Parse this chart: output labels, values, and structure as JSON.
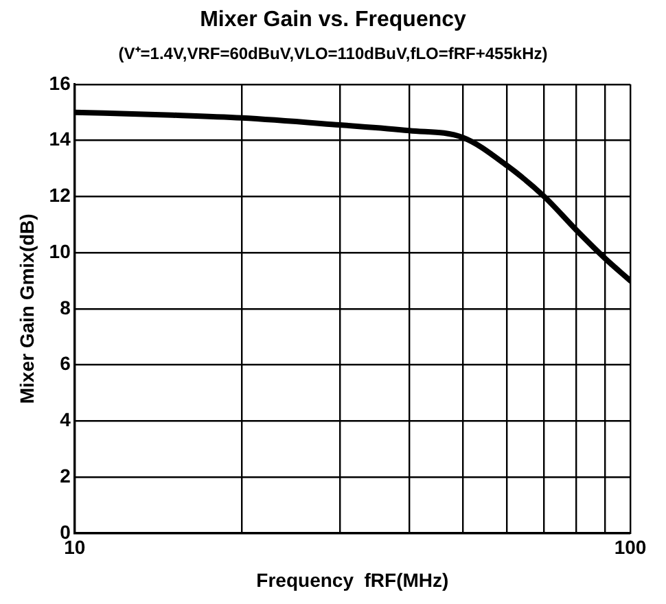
{
  "chart_data": {
    "type": "line",
    "title": "Mixer Gain vs. Frequency",
    "subtitle": "(V⁺=1.4V,VRF=60dBuV,VLO=110dBuV,fLO=fRF+455kHz)",
    "xlabel": "Frequency  fRF(MHz)",
    "ylabel": "Mixer Gain Gmix(dB)",
    "x": [
      10,
      15,
      20,
      30,
      40,
      50,
      60,
      70,
      80,
      90,
      100
    ],
    "series": [
      {
        "color": "#000000",
        "values": [
          15.0,
          14.9,
          14.8,
          14.55,
          14.35,
          14.1,
          13.1,
          12.0,
          10.8,
          9.8,
          9.0
        ]
      }
    ],
    "log": "x",
    "xlim": [
      10,
      100
    ],
    "xticks": [
      10,
      {
        "value": 20,
        "label": null
      },
      {
        "value": 30,
        "label": null
      },
      {
        "value": 40,
        "label": null
      },
      {
        "value": 50,
        "label": null
      },
      {
        "value": 60,
        "label": null
      },
      {
        "value": 70,
        "label": null
      },
      {
        "value": 80,
        "label": null
      },
      {
        "value": 90,
        "label": null
      },
      100
    ],
    "ylim": [
      0,
      16
    ],
    "yticks": [
      0,
      2,
      4,
      6,
      8,
      10,
      12,
      14,
      16
    ],
    "grid": true,
    "legend": false,
    "marker": "none",
    "line_style": "solid"
  }
}
